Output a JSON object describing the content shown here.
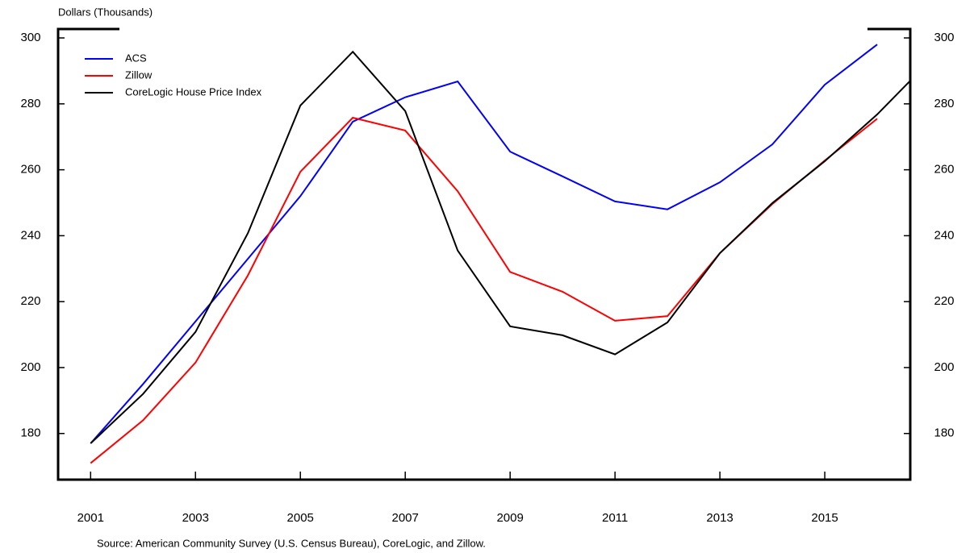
{
  "chart_data": {
    "type": "line",
    "y_axis_label": "Dollars (Thousands)",
    "source": "Source: American Community Survey (U.S. Census Bureau), CoreLogic, and Zillow.",
    "x": [
      2001,
      2002,
      2003,
      2004,
      2005,
      2006,
      2007,
      2008,
      2009,
      2010,
      2011,
      2012,
      2013,
      2014,
      2015,
      2016,
      2017
    ],
    "series": [
      {
        "name": "ACS",
        "color": "#0000ff",
        "values": [
          177,
          195,
          214,
          233,
          252,
          274.6,
          282,
          286.8,
          265.5,
          258,
          250.4,
          248,
          256.2,
          267.7,
          285.8,
          298,
          null
        ]
      },
      {
        "name": "Zillow",
        "color": "#ff0000",
        "values": [
          171,
          184,
          201.5,
          228,
          259.4,
          275.8,
          271.9,
          253.5,
          229,
          223,
          214.2,
          215.6,
          234.7,
          249.6,
          262.8,
          275.5,
          null
        ]
      },
      {
        "name": "CoreLogic House Price Index",
        "color": "#000000",
        "values": [
          177,
          192,
          210.8,
          240.8,
          279.5,
          295.8,
          277.8,
          235.5,
          212.5,
          209.8,
          204,
          213.7,
          234.7,
          249.9,
          262.6,
          276.8,
          293
        ]
      }
    ],
    "xlim": [
      2000.38,
      2016.63
    ],
    "xticks": [
      2001,
      2003,
      2005,
      2007,
      2009,
      2011,
      2013,
      2015
    ],
    "ylim": [
      166,
      302.7
    ],
    "yticks": [
      180,
      200,
      220,
      240,
      260,
      280,
      300
    ],
    "grid": false
  }
}
